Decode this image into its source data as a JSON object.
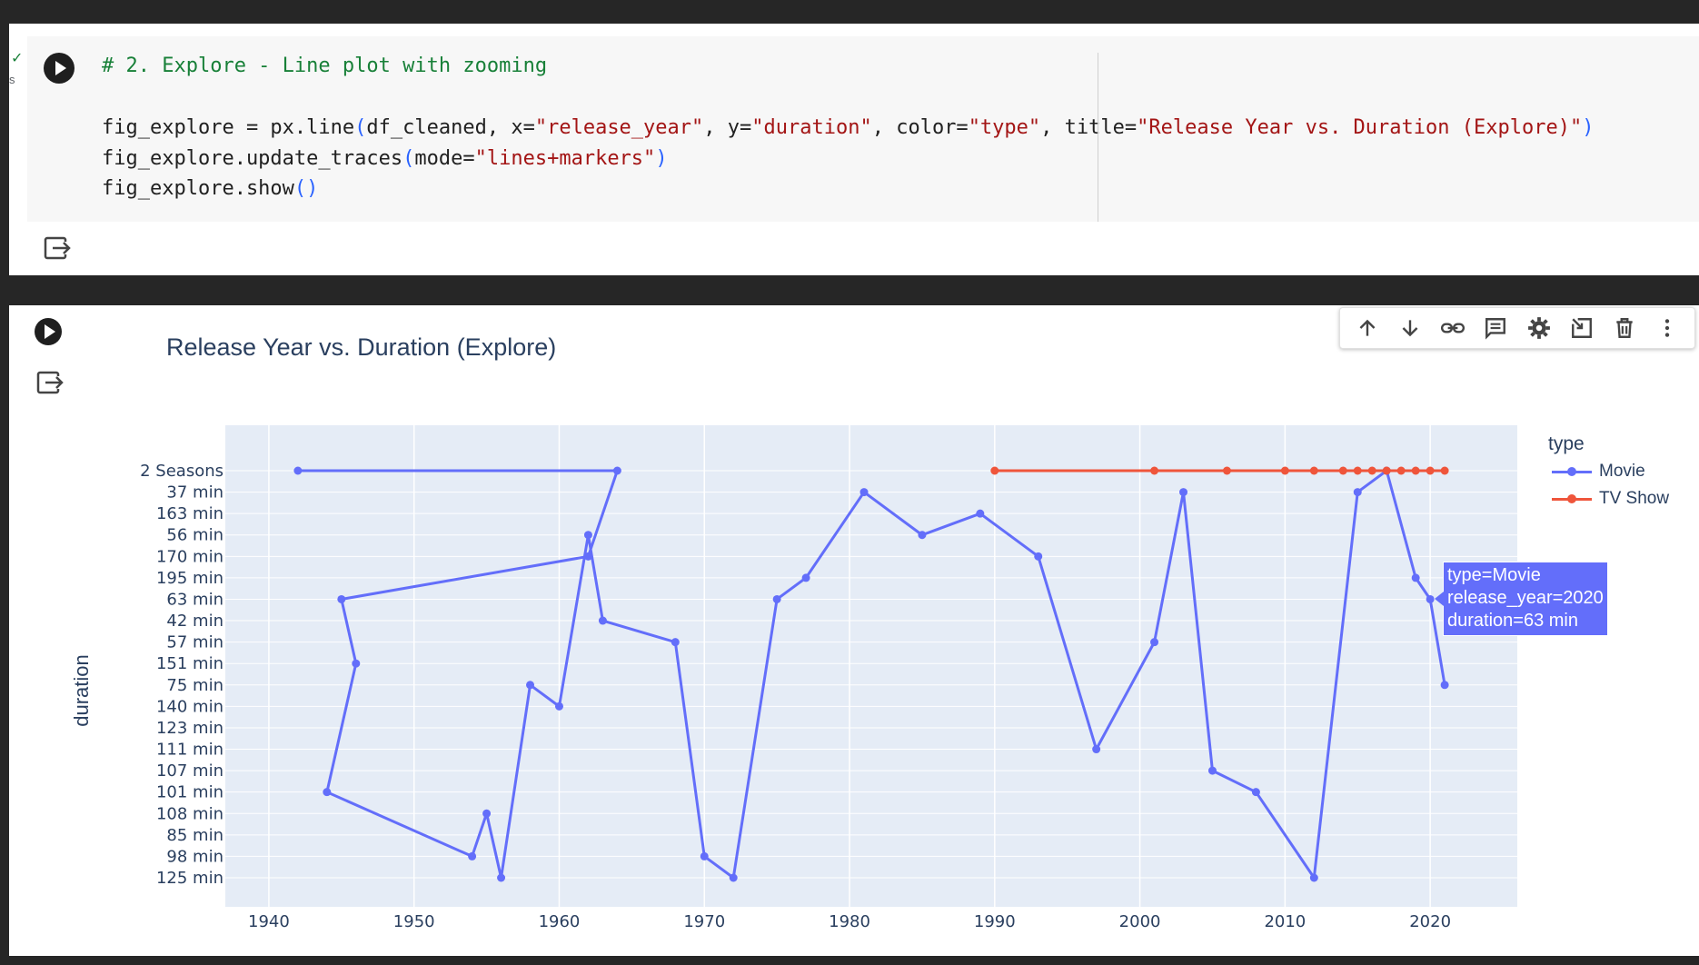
{
  "cell1": {
    "status_mark": "✓",
    "status_label": "s",
    "code": {
      "comment": "# 2. Explore - Line plot with zooming",
      "l2_a": "fig_explore = px.line",
      "l2_b": "df_cleaned, x=",
      "l2_c": "\"release_year\"",
      "l2_d": ", y=",
      "l2_e": "\"duration\"",
      "l2_f": ", color=",
      "l2_g": "\"type\"",
      "l2_h": ", title=",
      "l2_i": "\"Release Year vs. Duration (Explore)\"",
      "l3_a": "fig_explore.update_traces",
      "l3_b": "mode=",
      "l3_c": "\"lines+markers\"",
      "l4_a": "fig_explore.show",
      "open_paren": "(",
      "close_paren": ")",
      "empty_parens": "()"
    }
  },
  "toolbar": {
    "icons": [
      "arrow-up-icon",
      "arrow-down-icon",
      "link-icon",
      "comment-icon",
      "gear-icon",
      "mirror-cell-icon",
      "trash-icon",
      "more-vert-icon"
    ]
  },
  "chart_data": {
    "type": "line",
    "title": "Release Year vs. Duration (Explore)",
    "xlabel": "",
    "ylabel": "duration",
    "x_ticks": [
      "1940",
      "1950",
      "1960",
      "1970",
      "1980",
      "1990",
      "2000",
      "2010",
      "2020"
    ],
    "xlim": [
      1937,
      2026
    ],
    "y_categories": [
      "2 Seasons",
      "37 min",
      "163 min",
      "56 min",
      "170 min",
      "195 min",
      "63 min",
      "42 min",
      "57 min",
      "151 min",
      "75 min",
      "140 min",
      "123 min",
      "111 min",
      "107 min",
      "101 min",
      "108 min",
      "85 min",
      "98 min",
      "125 min"
    ],
    "legend_title": "type",
    "legend_position": "right",
    "grid": true,
    "series": [
      {
        "name": "Movie",
        "color": "#636efa",
        "x": [
          1942,
          1964,
          1962,
          1945,
          1946,
          1944,
          1954,
          1955,
          1956,
          1958,
          1960,
          1962,
          1963,
          1968,
          1970,
          1972,
          1975,
          1977,
          1981,
          1985,
          1989,
          1993,
          1997,
          2001,
          2003,
          2005,
          2008,
          2012,
          2015,
          2017,
          2019,
          2020,
          2021
        ],
        "y": [
          "2 Seasons",
          "2 Seasons",
          "170 min",
          "63 min",
          "151 min",
          "101 min",
          "98 min",
          "108 min",
          "125 min",
          "75 min",
          "140 min",
          "56 min",
          "42 min",
          "57 min",
          "98 min",
          "125 min",
          "63 min",
          "195 min",
          "37 min",
          "56 min",
          "163 min",
          "170 min",
          "111 min",
          "57 min",
          "37 min",
          "107 min",
          "101 min",
          "125 min",
          "37 min",
          "2 Seasons",
          "195 min",
          "63 min",
          "75 min"
        ]
      },
      {
        "name": "TV Show",
        "color": "#ef553b",
        "x": [
          1990,
          2001,
          2006,
          2010,
          2012,
          2014,
          2015,
          2016,
          2017,
          2018,
          2019,
          2020,
          2021
        ],
        "y": [
          "2 Seasons",
          "2 Seasons",
          "2 Seasons",
          "2 Seasons",
          "2 Seasons",
          "2 Seasons",
          "2 Seasons",
          "2 Seasons",
          "2 Seasons",
          "2 Seasons",
          "2 Seasons",
          "2 Seasons",
          "2 Seasons"
        ]
      }
    ],
    "tooltip": {
      "type": "type=Movie",
      "release_year": "release_year=2020",
      "duration": "duration=63 min"
    }
  }
}
